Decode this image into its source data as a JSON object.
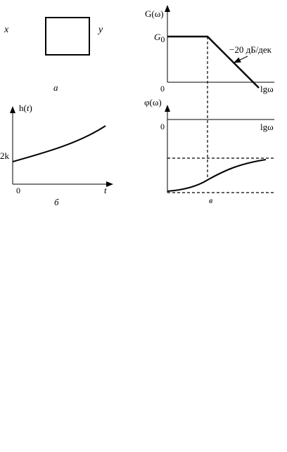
{
  "panel_a": {
    "input_label": "x",
    "output_label": "y",
    "caption": "а"
  },
  "panel_b": {
    "y_axis_label_prefix": "h(",
    "y_axis_label_var": "t",
    "y_axis_label_suffix": ")",
    "y_marker": "2k",
    "origin_label": "0",
    "x_axis_label": "t",
    "caption": "б"
  },
  "panel_c": {
    "gain_axis_label": "G(ω)",
    "gain_level_main": "G",
    "gain_level_sub": "0",
    "gain_origin": "0",
    "gain_x_axis_label": "lgω",
    "slope_label": "−20 дБ/дек",
    "phase_axis_label": "φ(ω)",
    "phase_origin": "0",
    "phase_x_axis_label": "lgω",
    "caption": "в"
  },
  "colors": {
    "ink": "#000000",
    "background": "#ffffff"
  }
}
